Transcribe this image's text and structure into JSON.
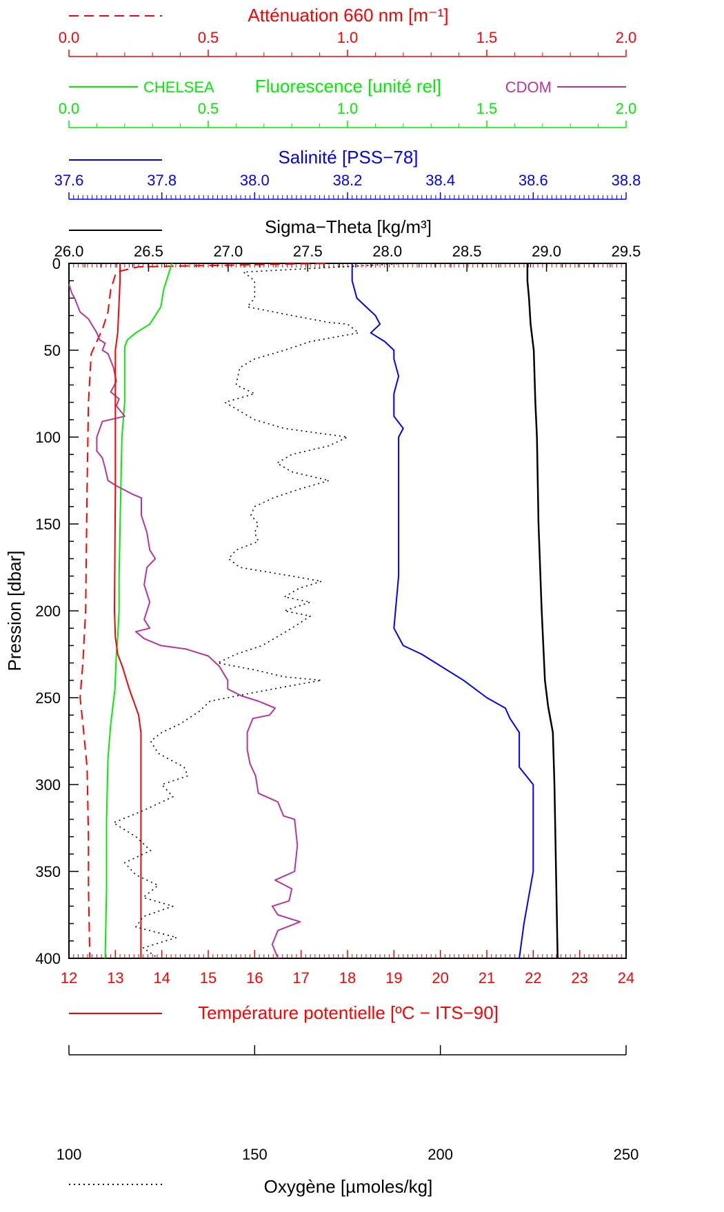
{
  "chart_data": {
    "type": "line",
    "colors": {
      "attenuation": "#ff0000",
      "fluorescence": "#00ee00",
      "cdom": "#bb3399",
      "salinity": "#0000ff",
      "sigma": "#000000",
      "temperature": "#ff0000",
      "oxygen": "#000000"
    },
    "yaxis": {
      "label": "Pression [dbar]",
      "range": [
        0,
        400
      ],
      "inverted": true,
      "ticks": [
        "0",
        "50",
        "100",
        "150",
        "200",
        "250",
        "300",
        "350",
        "400"
      ]
    },
    "axes": {
      "attenuation": {
        "label": "Atténuation 660 nm [m⁻¹]",
        "range": [
          0.0,
          2.0
        ],
        "ticks": [
          "0.0",
          "0.5",
          "1.0",
          "1.5",
          "2.0"
        ]
      },
      "fluorescence": {
        "label": "Fluorescence [unité rel]",
        "range": [
          0.0,
          2.0
        ],
        "ticks": [
          "0.0",
          "0.5",
          "1.0",
          "1.5",
          "2.0"
        ],
        "legend_left": "CHELSEA",
        "legend_right": "CDOM"
      },
      "salinity": {
        "label": "Salinité [PSS−78]",
        "range": [
          37.6,
          38.8
        ],
        "ticks": [
          "37.6",
          "37.8",
          "38.0",
          "38.2",
          "38.4",
          "38.6",
          "38.8"
        ]
      },
      "sigma": {
        "label": "Sigma−Theta [kg/m³]",
        "range": [
          26.0,
          29.5
        ],
        "ticks": [
          "26.0",
          "26.5",
          "27.0",
          "27.5",
          "28.0",
          "28.5",
          "29.0",
          "29.5"
        ]
      },
      "temperature": {
        "label": "Température potentielle [ºC − ITS−90]",
        "range": [
          12,
          24
        ],
        "ticks": [
          "12",
          "13",
          "14",
          "15",
          "16",
          "17",
          "18",
          "19",
          "20",
          "21",
          "22",
          "23",
          "24"
        ]
      },
      "oxygen": {
        "label": "Oxygène [µmoles/kg]",
        "range": [
          100,
          250
        ],
        "ticks": [
          "100",
          "150",
          "200",
          "250"
        ]
      }
    },
    "series": [
      {
        "key": "attenuation",
        "axis": "attenuation",
        "style": "dashed",
        "points": [
          [
            0.92,
            0
          ],
          [
            0.25,
            2
          ],
          [
            0.17,
            5
          ],
          [
            0.15,
            15
          ],
          [
            0.14,
            28
          ],
          [
            0.12,
            38
          ],
          [
            0.1,
            45
          ],
          [
            0.08,
            52
          ],
          [
            0.07,
            80
          ],
          [
            0.065,
            130
          ],
          [
            0.06,
            200
          ],
          [
            0.05,
            230
          ],
          [
            0.04,
            250
          ],
          [
            0.05,
            265
          ],
          [
            0.065,
            290
          ],
          [
            0.07,
            330
          ],
          [
            0.07,
            360
          ],
          [
            0.075,
            400
          ]
        ]
      },
      {
        "key": "fluorescence_chelsea",
        "axis": "fluorescence",
        "style": "solid",
        "points": [
          [
            0.37,
            0
          ],
          [
            0.36,
            5
          ],
          [
            0.34,
            15
          ],
          [
            0.33,
            25
          ],
          [
            0.29,
            35
          ],
          [
            0.24,
            40
          ],
          [
            0.21,
            44
          ],
          [
            0.2,
            48
          ],
          [
            0.2,
            80
          ],
          [
            0.19,
            100
          ],
          [
            0.185,
            140
          ],
          [
            0.18,
            180
          ],
          [
            0.18,
            200
          ],
          [
            0.175,
            215
          ],
          [
            0.17,
            225
          ],
          [
            0.165,
            245
          ],
          [
            0.15,
            265
          ],
          [
            0.14,
            285
          ],
          [
            0.135,
            320
          ],
          [
            0.135,
            360
          ],
          [
            0.13,
            400
          ]
        ]
      },
      {
        "key": "fluorescence_cdom",
        "axis": "fluorescence",
        "style": "solid",
        "points": [
          [
            0.0,
            12
          ],
          [
            0.01,
            17
          ],
          [
            0.02,
            20
          ],
          [
            0.04,
            28
          ],
          [
            0.07,
            32
          ],
          [
            0.1,
            40
          ],
          [
            0.11,
            44
          ],
          [
            0.13,
            46
          ],
          [
            0.12,
            50
          ],
          [
            0.14,
            52
          ],
          [
            0.16,
            60
          ],
          [
            0.17,
            68
          ],
          [
            0.15,
            74
          ],
          [
            0.18,
            78
          ],
          [
            0.17,
            82
          ],
          [
            0.2,
            88
          ],
          [
            0.12,
            91
          ],
          [
            0.1,
            100
          ],
          [
            0.1,
            108
          ],
          [
            0.12,
            112
          ],
          [
            0.13,
            118
          ],
          [
            0.14,
            125
          ],
          [
            0.17,
            128
          ],
          [
            0.23,
            133
          ],
          [
            0.26,
            135
          ],
          [
            0.26,
            145
          ],
          [
            0.28,
            155
          ],
          [
            0.29,
            165
          ],
          [
            0.31,
            170
          ],
          [
            0.28,
            175
          ],
          [
            0.27,
            185
          ],
          [
            0.29,
            195
          ],
          [
            0.27,
            205
          ],
          [
            0.29,
            210
          ],
          [
            0.24,
            212
          ],
          [
            0.27,
            216
          ],
          [
            0.33,
            220
          ],
          [
            0.42,
            222
          ],
          [
            0.5,
            226
          ],
          [
            0.54,
            232
          ],
          [
            0.57,
            240
          ],
          [
            0.57,
            245
          ],
          [
            0.62,
            249
          ],
          [
            0.68,
            252
          ],
          [
            0.74,
            256
          ],
          [
            0.72,
            260
          ],
          [
            0.66,
            262
          ],
          [
            0.64,
            270
          ],
          [
            0.64,
            280
          ],
          [
            0.65,
            288
          ],
          [
            0.67,
            295
          ],
          [
            0.68,
            305
          ],
          [
            0.75,
            310
          ],
          [
            0.77,
            318
          ],
          [
            0.81,
            320
          ],
          [
            0.82,
            335
          ],
          [
            0.81,
            350
          ],
          [
            0.74,
            355
          ],
          [
            0.8,
            360
          ],
          [
            0.79,
            367
          ],
          [
            0.73,
            370
          ],
          [
            0.75,
            375
          ],
          [
            0.83,
            379
          ],
          [
            0.75,
            384
          ],
          [
            0.73,
            392
          ],
          [
            0.75,
            400
          ]
        ]
      },
      {
        "key": "salinity",
        "axis": "salinity",
        "style": "solid",
        "points": [
          [
            38.21,
            0
          ],
          [
            38.21,
            10
          ],
          [
            38.22,
            20
          ],
          [
            38.24,
            25
          ],
          [
            38.26,
            30
          ],
          [
            38.27,
            35
          ],
          [
            38.25,
            40
          ],
          [
            38.28,
            45
          ],
          [
            38.3,
            50
          ],
          [
            38.3,
            55
          ],
          [
            38.31,
            65
          ],
          [
            38.3,
            75
          ],
          [
            38.3,
            88
          ],
          [
            38.32,
            95
          ],
          [
            38.31,
            100
          ],
          [
            38.31,
            110
          ],
          [
            38.31,
            125
          ],
          [
            38.31,
            140
          ],
          [
            38.31,
            160
          ],
          [
            38.31,
            180
          ],
          [
            38.3,
            210
          ],
          [
            38.32,
            220
          ],
          [
            38.36,
            225
          ],
          [
            38.39,
            230
          ],
          [
            38.45,
            240
          ],
          [
            38.5,
            250
          ],
          [
            38.54,
            256
          ],
          [
            38.55,
            262
          ],
          [
            38.57,
            270
          ],
          [
            38.57,
            280
          ],
          [
            38.57,
            290
          ],
          [
            38.6,
            300
          ],
          [
            38.6,
            320
          ],
          [
            38.6,
            350
          ],
          [
            38.58,
            380
          ],
          [
            38.57,
            400
          ]
        ]
      },
      {
        "key": "sigma_theta",
        "axis": "sigma",
        "style": "solid",
        "points": [
          [
            28.88,
            0
          ],
          [
            28.88,
            10
          ],
          [
            28.89,
            20
          ],
          [
            28.9,
            35
          ],
          [
            28.92,
            50
          ],
          [
            28.93,
            80
          ],
          [
            28.94,
            100
          ],
          [
            28.95,
            150
          ],
          [
            28.97,
            200
          ],
          [
            28.99,
            240
          ],
          [
            29.01,
            255
          ],
          [
            29.04,
            270
          ],
          [
            29.05,
            300
          ],
          [
            29.06,
            350
          ],
          [
            29.07,
            400
          ]
        ]
      },
      {
        "key": "temperature",
        "axis": "temperature",
        "style": "solid",
        "points": [
          [
            13.1,
            0
          ],
          [
            13.1,
            10
          ],
          [
            13.05,
            40
          ],
          [
            13.0,
            50
          ],
          [
            13.0,
            130
          ],
          [
            12.98,
            200
          ],
          [
            13.0,
            215
          ],
          [
            13.05,
            225
          ],
          [
            13.15,
            232
          ],
          [
            13.3,
            245
          ],
          [
            13.5,
            260
          ],
          [
            13.55,
            270
          ],
          [
            13.55,
            300
          ],
          [
            13.55,
            350
          ],
          [
            13.55,
            400
          ]
        ]
      },
      {
        "key": "oxygen",
        "axis": "oxygen",
        "style": "dotted",
        "points": [
          [
            191,
            0
          ],
          [
            147,
            5
          ],
          [
            150,
            10
          ],
          [
            150,
            20
          ],
          [
            148,
            25
          ],
          [
            160,
            30
          ],
          [
            170,
            34
          ],
          [
            175,
            35
          ],
          [
            178,
            40
          ],
          [
            165,
            45
          ],
          [
            158,
            50
          ],
          [
            150,
            55
          ],
          [
            146,
            60
          ],
          [
            145,
            70
          ],
          [
            150,
            75
          ],
          [
            142,
            80
          ],
          [
            146,
            85
          ],
          [
            150,
            90
          ],
          [
            158,
            95
          ],
          [
            175,
            100
          ],
          [
            170,
            105
          ],
          [
            160,
            110
          ],
          [
            156,
            115
          ],
          [
            160,
            120
          ],
          [
            170,
            125
          ],
          [
            162,
            130
          ],
          [
            155,
            135
          ],
          [
            150,
            140
          ],
          [
            149,
            145
          ],
          [
            151,
            150
          ],
          [
            150,
            155
          ],
          [
            151,
            160
          ],
          [
            145,
            165
          ],
          [
            143,
            170
          ],
          [
            146,
            175
          ],
          [
            160,
            180
          ],
          [
            168,
            183
          ],
          [
            162,
            187
          ],
          [
            158,
            192
          ],
          [
            165,
            195
          ],
          [
            158,
            200
          ],
          [
            165,
            203
          ],
          [
            160,
            210
          ],
          [
            156,
            215
          ],
          [
            152,
            220
          ],
          [
            145,
            225
          ],
          [
            140,
            230
          ],
          [
            150,
            234
          ],
          [
            158,
            238
          ],
          [
            168,
            240
          ],
          [
            160,
            243
          ],
          [
            150,
            247
          ],
          [
            138,
            252
          ],
          [
            135,
            258
          ],
          [
            130,
            265
          ],
          [
            125,
            270
          ],
          [
            122,
            275
          ],
          [
            124,
            282
          ],
          [
            131,
            290
          ],
          [
            132,
            295
          ],
          [
            125,
            300
          ],
          [
            128,
            307
          ],
          [
            120,
            315
          ],
          [
            112,
            322
          ],
          [
            118,
            330
          ],
          [
            122,
            338
          ],
          [
            115,
            345
          ],
          [
            118,
            352
          ],
          [
            124,
            358
          ],
          [
            120,
            365
          ],
          [
            128,
            370
          ],
          [
            120,
            376
          ],
          [
            118,
            382
          ],
          [
            129,
            388
          ],
          [
            120,
            394
          ],
          [
            124,
            400
          ]
        ]
      }
    ]
  }
}
